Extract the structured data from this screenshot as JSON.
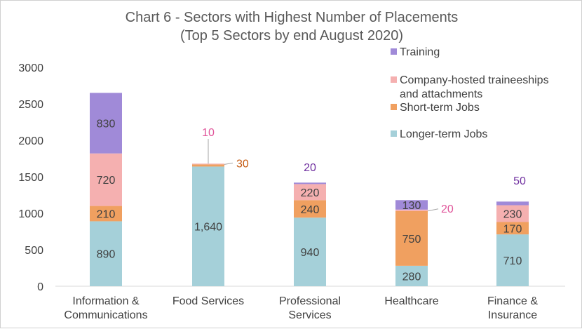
{
  "chart_data": {
    "type": "bar",
    "stacked": true,
    "title": "Chart 6 - Sectors with Highest Number of Placements",
    "subtitle": "(Top 5 Sectors by end August 2020)",
    "categories": [
      [
        "Information &",
        "Communications"
      ],
      [
        "Food Services"
      ],
      [
        "Professional",
        "Services"
      ],
      [
        "Healthcare"
      ],
      [
        "Finance &",
        "Insurance"
      ]
    ],
    "ylim": [
      0,
      3000
    ],
    "yticks": [
      0,
      500,
      1000,
      1500,
      2000,
      2500,
      3000
    ],
    "grid": false,
    "legend_position": "top-right",
    "series": [
      {
        "name": "Longer-term Jobs",
        "color": "#a5d0d9",
        "label_color": "#404040",
        "values": [
          890,
          1640,
          940,
          280,
          710
        ],
        "labels": [
          "890",
          "1,640",
          "940",
          "280",
          "710"
        ]
      },
      {
        "name": "Short-term Jobs",
        "color": "#f0a060",
        "label_color": "#404040",
        "values": [
          210,
          30,
          240,
          750,
          170
        ],
        "labels": [
          "210",
          "30",
          "240",
          "750",
          "170"
        ]
      },
      {
        "name": "Company-hosted traineeships and attachments",
        "legend_lines": [
          "Company-hosted traineeships",
          "and attachments"
        ],
        "color": "#f5b0b0",
        "label_color": "#e0559a",
        "values": [
          720,
          10,
          220,
          20,
          230
        ],
        "labels": [
          "720",
          "10",
          "220",
          "20",
          "230"
        ]
      },
      {
        "name": "Training",
        "color": "#a08ad8",
        "label_color": "#7030a0",
        "values": [
          830,
          0,
          20,
          130,
          50
        ],
        "labels": [
          "830",
          "",
          "20",
          "130",
          "50"
        ]
      }
    ]
  }
}
